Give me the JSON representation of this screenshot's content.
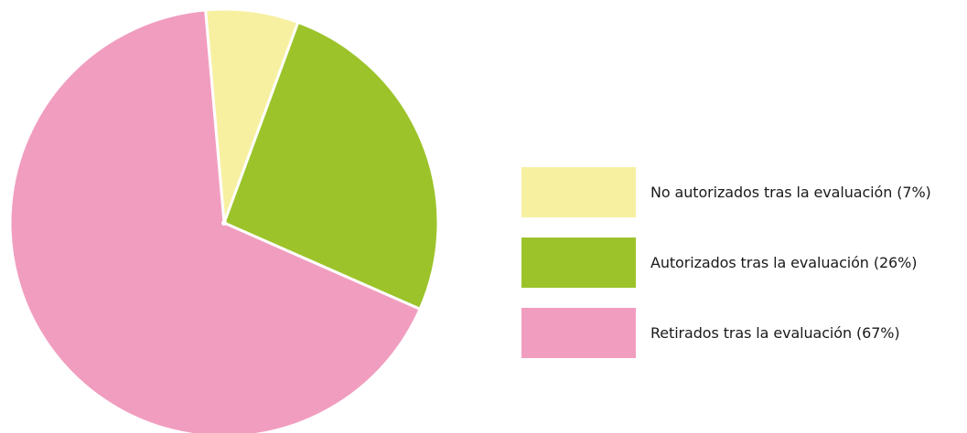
{
  "chart_data": {
    "type": "pie",
    "title": "",
    "start_angle_deg": -5,
    "direction": "clockwise",
    "slices": [
      {
        "label": "No autorizados tras la evaluación (7%)",
        "value": 7,
        "color": "#F7F0A1"
      },
      {
        "label": "Autorizados tras la evaluación (26%)",
        "value": 26,
        "color": "#9CC32A"
      },
      {
        "label": "Retirados tras la evaluación (67%)",
        "value": 67,
        "color": "#F19DC0"
      }
    ],
    "legend_placement": "right"
  }
}
